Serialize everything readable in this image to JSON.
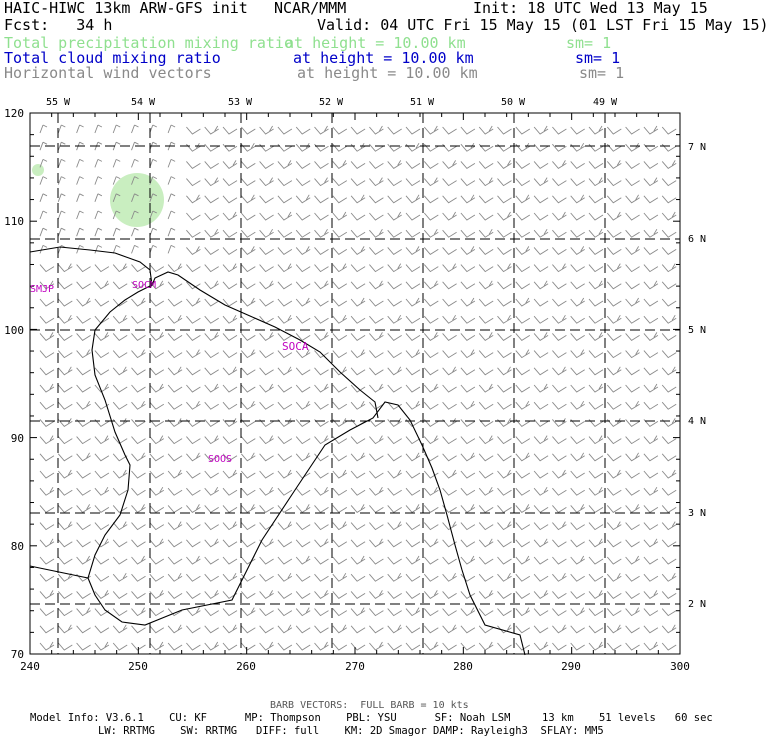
{
  "header": {
    "model": "HAIC-HIWC 13km ARW-GFS init",
    "org": "NCAR/MMM",
    "init": "Init: 18 UTC Wed 13 May 15",
    "fcst": "Fcst:   34 h",
    "valid": "Valid: 04 UTC Fri 15 May 15 (01 LST Fri 15 May 15)",
    "fields": [
      {
        "name": "Total precipitation mixing ratio",
        "height": "at height = 10.00 km",
        "sm": "sm= 1",
        "color": "#8fe08f"
      },
      {
        "name": "Total cloud mixing ratio",
        "height": "at height = 10.00 km",
        "sm": "sm= 1",
        "color": "#0000c8"
      },
      {
        "name": "Horizontal wind vectors",
        "height": "at height = 10.00 km",
        "sm": "sm= 1",
        "color": "#8a8a8a"
      }
    ]
  },
  "axes": {
    "x_ticks": [
      "240",
      "250",
      "260",
      "270",
      "280",
      "290",
      "300"
    ],
    "y_ticks": [
      "70",
      "80",
      "90",
      "100",
      "110",
      "120"
    ],
    "lon_labels": [
      "55 W",
      "54 W",
      "53 W",
      "52 W",
      "51 W",
      "50 W",
      "49 W"
    ],
    "lat_labels": [
      "7 N",
      "6 N",
      "5 N",
      "4 N",
      "3 N",
      "2 N"
    ]
  },
  "stations": [
    "SMJP",
    "SOCM",
    "SOCA",
    "SOOS"
  ],
  "colors": {
    "station": "#c000c0",
    "barb": "#8a8a8a",
    "precip": "#c9eec0",
    "grid": "#000000"
  },
  "footer": {
    "barb_note": "BARB VECTORS:  FULL BARB = 10 kts",
    "line1": "Model Info: V3.6.1    CU: KF      MP: Thompson    PBL: YSU      SF: Noah LSM     13 km    51 levels   60 sec",
    "line2": "LW: RRTMG    SW: RRTMG   DIFF: full    KM: 2D Smagor DAMP: Rayleigh3  SFLAY: MM5"
  }
}
